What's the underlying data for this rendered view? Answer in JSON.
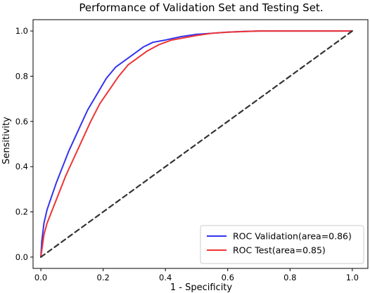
{
  "chart_data": {
    "type": "line",
    "title": "Performance of Validation Set and Testing Set.",
    "xlabel": "1 - Specificity",
    "ylabel": "Sensitivity",
    "xlim": [
      -0.025,
      1.05
    ],
    "ylim": [
      -0.05,
      1.05
    ],
    "xticks": [
      "0.0",
      "0.2",
      "0.4",
      "0.6",
      "0.8",
      "1.0"
    ],
    "yticks": [
      "0.0",
      "0.2",
      "0.4",
      "0.6",
      "0.8",
      "1.0"
    ],
    "grid": false,
    "legend_position": "bottom-right",
    "series": [
      {
        "name": "ROC Validation(area=0.86)",
        "color": "#3333ee",
        "x": [
          0.0,
          0.003,
          0.01,
          0.02,
          0.03,
          0.05,
          0.07,
          0.09,
          0.12,
          0.15,
          0.18,
          0.21,
          0.24,
          0.27,
          0.3,
          0.33,
          0.36,
          0.4,
          0.45,
          0.5,
          0.55,
          0.6,
          0.65,
          0.7,
          0.8,
          0.9,
          1.0
        ],
        "y": [
          0.0,
          0.07,
          0.15,
          0.21,
          0.25,
          0.33,
          0.4,
          0.47,
          0.56,
          0.65,
          0.72,
          0.79,
          0.84,
          0.87,
          0.9,
          0.93,
          0.95,
          0.96,
          0.975,
          0.985,
          0.99,
          0.995,
          0.998,
          1.0,
          1.0,
          1.0,
          1.0
        ]
      },
      {
        "name": "ROC Test(area=0.85)",
        "color": "#ee3333",
        "x": [
          0.0,
          0.005,
          0.01,
          0.02,
          0.04,
          0.06,
          0.08,
          0.1,
          0.13,
          0.16,
          0.19,
          0.22,
          0.25,
          0.28,
          0.31,
          0.34,
          0.38,
          0.42,
          0.46,
          0.5,
          0.55,
          0.6,
          0.7,
          0.8,
          0.9,
          1.0
        ],
        "y": [
          0.0,
          0.05,
          0.1,
          0.15,
          0.22,
          0.29,
          0.36,
          0.42,
          0.51,
          0.6,
          0.68,
          0.74,
          0.8,
          0.85,
          0.88,
          0.91,
          0.94,
          0.96,
          0.97,
          0.98,
          0.99,
          0.995,
          1.0,
          1.0,
          1.0,
          1.0
        ]
      },
      {
        "name": "",
        "color": "#333333",
        "dashed": true,
        "x": [
          0.0,
          1.0
        ],
        "y": [
          0.0,
          1.0
        ]
      }
    ]
  }
}
